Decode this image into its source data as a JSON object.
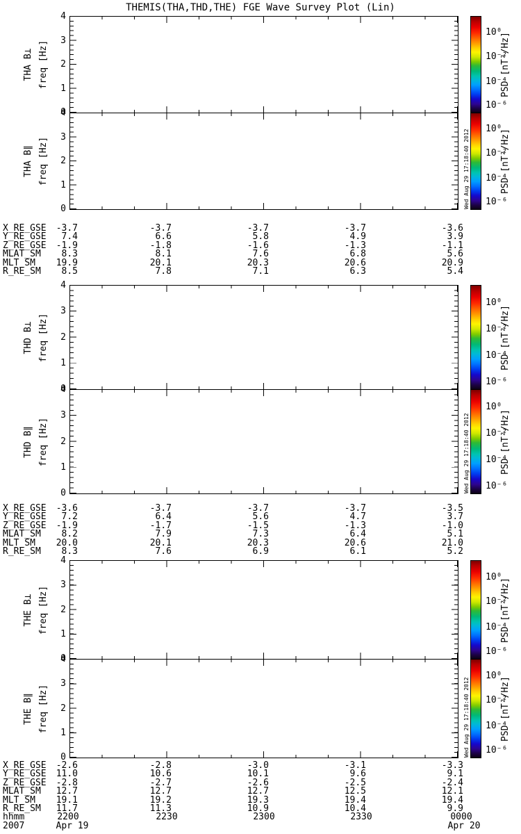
{
  "chart_data": {
    "type": "heatmap",
    "subtype": "spectrogram-survey, 6 blank panels (no PSD data plotted)",
    "title": "THEMIS(THA,THD,THE) FGE Wave Survey Plot (Lin)",
    "freq_axis": {
      "label": "freq [Hz]",
      "ticks": [
        0,
        1,
        2,
        3,
        4
      ],
      "range": [
        0,
        4
      ],
      "minor_tick_step": 0.2
    },
    "time_axis": {
      "hhmm_label": "hhmm",
      "year_label": "2007",
      "tick_labels": [
        "2200",
        "2230",
        "2300",
        "2330",
        "0000"
      ],
      "date_first": "Apr 19",
      "date_last": "Apr 20",
      "major_tick_minutes": 30,
      "minor_tick_minutes": 10
    },
    "colorbar": {
      "label": "PSD [nT²/Hz]",
      "scale": "log",
      "tick_labels": [
        "10⁰",
        "10⁻²",
        "10⁻⁴",
        "10⁻⁶"
      ],
      "tick_exponents": [
        0,
        -2,
        -4,
        -6
      ],
      "tick_fractions_from_top": [
        0.17,
        0.42,
        0.68,
        0.93
      ],
      "gradient_top_to_bottom": [
        "#7d0000",
        "#e90000",
        "#ff6a00",
        "#ffd300",
        "#fef400",
        "#7ecb00",
        "#2fba35",
        "#00c3b0",
        "#009fff",
        "#003cf0",
        "#1508cc",
        "#2d0492",
        "#0d0115"
      ]
    },
    "side_timestamp": "Wed Aug 29 17:18:40 2012",
    "groups": [
      {
        "probe": "THA",
        "panels": [
          {
            "label": "THA B⊥",
            "values": []
          },
          {
            "label": "THA B∥",
            "values": []
          }
        ],
        "ephemeris": [
          {
            "label": "X_RE_GSE",
            "values": [
              "-3.7",
              "-3.7",
              "-3.7",
              "-3.7",
              "-3.6"
            ]
          },
          {
            "label": "Y_RE_GSE",
            "values": [
              "7.4",
              "6.6",
              "5.8",
              "4.9",
              "3.9"
            ]
          },
          {
            "label": "Z_RE_GSE",
            "values": [
              "-1.9",
              "-1.8",
              "-1.6",
              "-1.3",
              "-1.1"
            ]
          },
          {
            "label": "MLAT_SM",
            "values": [
              "8.3",
              "8.1",
              "7.6",
              "6.8",
              "5.6"
            ]
          },
          {
            "label": "MLT_SM",
            "values": [
              "19.9",
              "20.1",
              "20.3",
              "20.6",
              "20.9"
            ]
          },
          {
            "label": "R_RE_SM",
            "values": [
              "8.5",
              "7.8",
              "7.1",
              "6.3",
              "5.4"
            ]
          }
        ]
      },
      {
        "probe": "THD",
        "panels": [
          {
            "label": "THD B⊥",
            "values": []
          },
          {
            "label": "THD B∥",
            "values": []
          }
        ],
        "ephemeris": [
          {
            "label": "X_RE_GSE",
            "values": [
              "-3.6",
              "-3.7",
              "-3.7",
              "-3.7",
              "-3.5"
            ]
          },
          {
            "label": "Y_RE_GSE",
            "values": [
              "7.2",
              "6.4",
              "5.6",
              "4.7",
              "3.7"
            ]
          },
          {
            "label": "Z_RE_GSE",
            "values": [
              "-1.9",
              "-1.7",
              "-1.5",
              "-1.3",
              "-1.0"
            ]
          },
          {
            "label": "MLAT_SM",
            "values": [
              "8.2",
              "7.9",
              "7.3",
              "6.4",
              "5.1"
            ]
          },
          {
            "label": "MLT_SM",
            "values": [
              "20.0",
              "20.1",
              "20.3",
              "20.6",
              "21.0"
            ]
          },
          {
            "label": "R_RE_SM",
            "values": [
              "8.3",
              "7.6",
              "6.9",
              "6.1",
              "5.2"
            ]
          }
        ]
      },
      {
        "probe": "THE",
        "panels": [
          {
            "label": "THE B⊥",
            "values": []
          },
          {
            "label": "THE B∥",
            "values": []
          }
        ],
        "ephemeris": [
          {
            "label": "X_RE_GSE",
            "values": [
              "-2.6",
              "-2.8",
              "-3.0",
              "-3.1",
              "-3.3"
            ]
          },
          {
            "label": "Y_RE_GSE",
            "values": [
              "11.0",
              "10.6",
              "10.1",
              "9.6",
              "9.1"
            ]
          },
          {
            "label": "Z_RE_GSE",
            "values": [
              "-2.8",
              "-2.7",
              "-2.6",
              "-2.5",
              "-2.4"
            ]
          },
          {
            "label": "MLAT_SM",
            "values": [
              "12.7",
              "12.7",
              "12.7",
              "12.5",
              "12.1"
            ]
          },
          {
            "label": "MLT_SM",
            "values": [
              "19.1",
              "19.2",
              "19.3",
              "19.4",
              "19.4"
            ]
          },
          {
            "label": "R_RE_SM",
            "values": [
              "11.7",
              "11.3",
              "10.9",
              "10.4",
              "9.9"
            ]
          }
        ]
      }
    ]
  }
}
